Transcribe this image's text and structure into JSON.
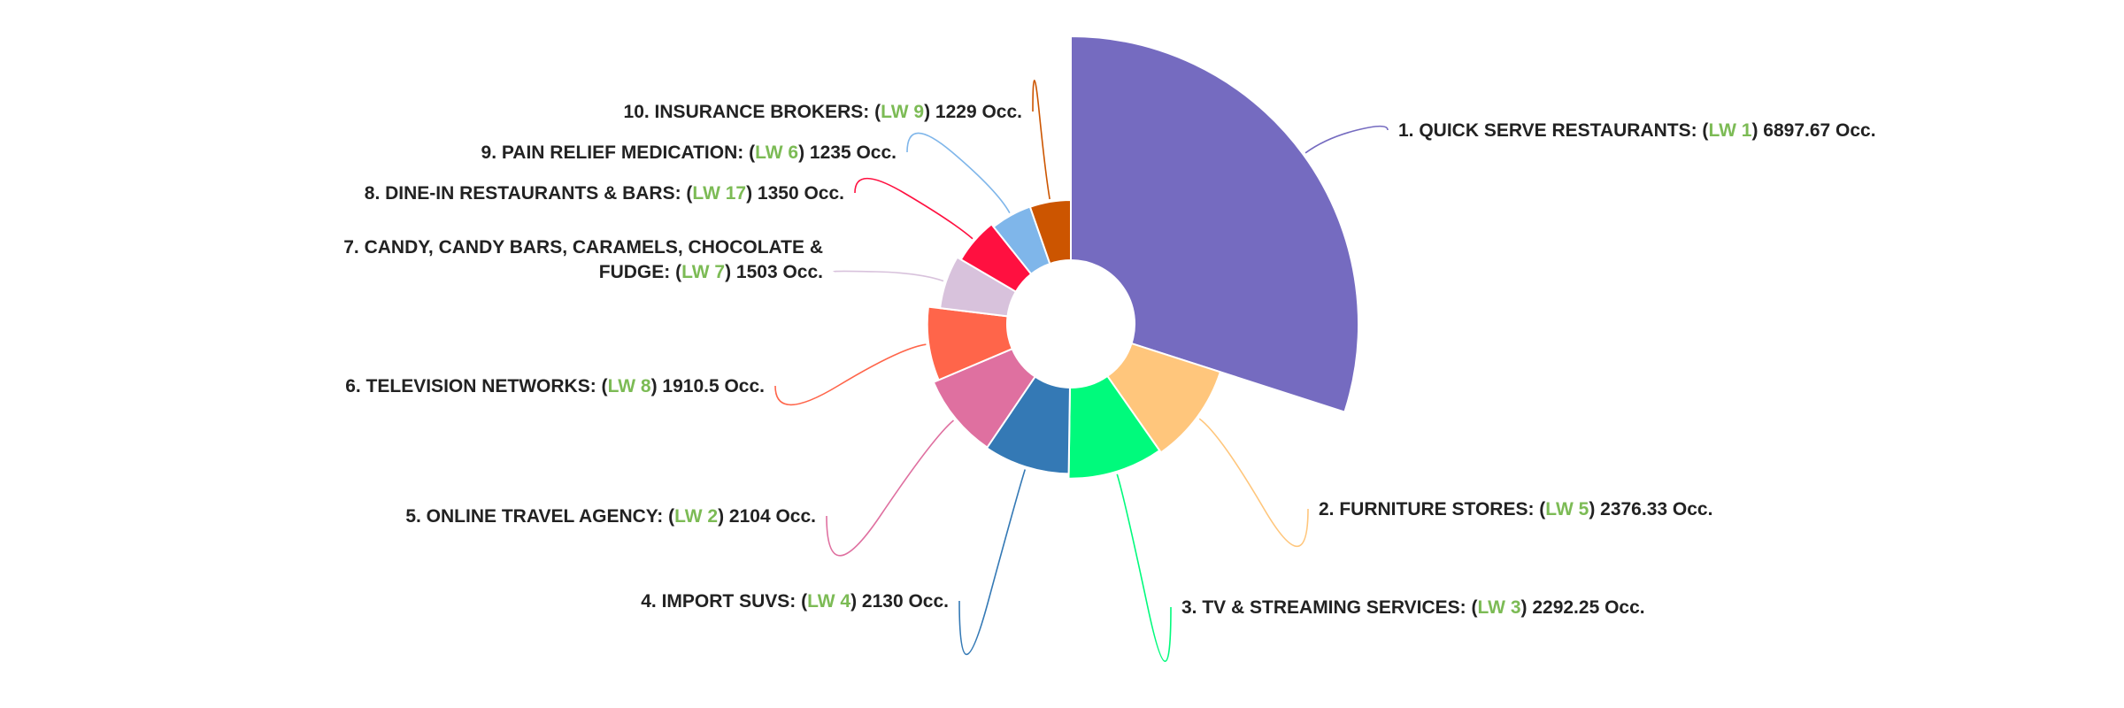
{
  "chart_data": {
    "type": "pie",
    "variant": "rose",
    "label_prefix": "(",
    "lw_prefix": "LW ",
    "occ_suffix": "Occ.",
    "slices": [
      {
        "rank": "1.",
        "name": "QUICK SERVE RESTAURANTS",
        "lw": 1,
        "value": 6897.67,
        "color": "#756bc0"
      },
      {
        "rank": "2.",
        "name": "FURNITURE STORES",
        "lw": 5,
        "value": 2376.33,
        "color": "#ffc67c"
      },
      {
        "rank": "3.",
        "name": "TV & STREAMING SERVICES",
        "lw": 3,
        "value": 2292.25,
        "color": "#00fa7c"
      },
      {
        "rank": "4.",
        "name": "IMPORT SUVS",
        "lw": 4,
        "value": 2130,
        "color": "#3479b5"
      },
      {
        "rank": "5.",
        "name": "ONLINE TRAVEL AGENCY",
        "lw": 2,
        "value": 2104,
        "color": "#df70a0"
      },
      {
        "rank": "6.",
        "name": "TELEVISION NETWORKS",
        "lw": 8,
        "value": 1910.5,
        "color": "#ff654a"
      },
      {
        "rank": "7.",
        "name": "CANDY, CANDY BARS, CARAMELS, CHOCOLATE & FUDGE",
        "name_lines": [
          "CANDY, CANDY BARS, CARAMELS, CHOCOLATE &",
          "FUDGE"
        ],
        "lw": 7,
        "value": 1503,
        "color": "#d8c2dc"
      },
      {
        "rank": "8.",
        "name": "DINE-IN RESTAURANTS & BARS",
        "lw": 17,
        "value": 1350,
        "color": "#ff1040"
      },
      {
        "rank": "9.",
        "name": "PAIN RELIEF MEDICATION",
        "lw": 6,
        "value": 1235,
        "color": "#7fb6ea"
      },
      {
        "rank": "10.",
        "name": "INSURANCE BROKERS",
        "lw": 9,
        "value": 1229,
        "color": "#cc5500"
      }
    ]
  }
}
